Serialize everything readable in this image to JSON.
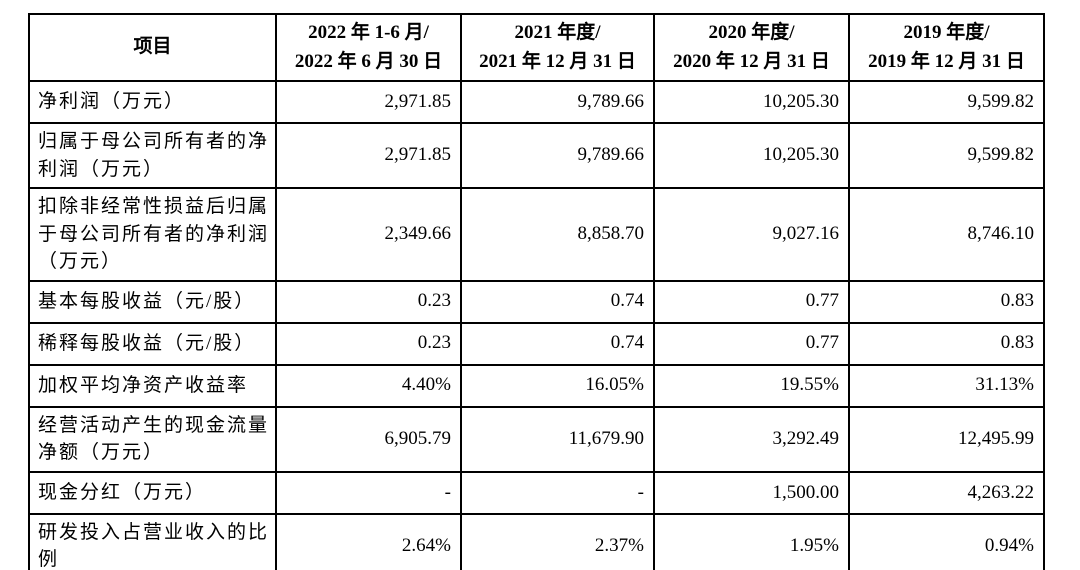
{
  "table": {
    "header": {
      "item_label": "项目",
      "periods": [
        {
          "line1": "2022 年 1-6 月/",
          "line2": "2022 年 6 月 30 日"
        },
        {
          "line1": "2021 年度/",
          "line2": "2021 年 12 月 31 日"
        },
        {
          "line1": "2020 年度/",
          "line2": "2020 年 12 月 31 日"
        },
        {
          "line1": "2019 年度/",
          "line2": "2019 年 12 月 31 日"
        }
      ]
    },
    "rows": [
      {
        "label": "净利润（万元）",
        "values": [
          "2,971.85",
          "9,789.66",
          "10,205.30",
          "9,599.82"
        ],
        "size": "h-1line"
      },
      {
        "label": "归属于母公司所有者的净利润（万元）",
        "values": [
          "2,971.85",
          "9,789.66",
          "10,205.30",
          "9,599.82"
        ],
        "size": "h-2line"
      },
      {
        "label": "扣除非经常性损益后归属于母公司所有者的净利润（万元）",
        "values": [
          "2,349.66",
          "8,858.70",
          "9,027.16",
          "8,746.10"
        ],
        "size": "h-3line"
      },
      {
        "label": "基本每股收益（元/股）",
        "values": [
          "0.23",
          "0.74",
          "0.77",
          "0.83"
        ],
        "size": "h-1line"
      },
      {
        "label": "稀释每股收益（元/股）",
        "values": [
          "0.23",
          "0.74",
          "0.77",
          "0.83"
        ],
        "size": "h-1line"
      },
      {
        "label": "加权平均净资产收益率",
        "values": [
          "4.40%",
          "16.05%",
          "19.55%",
          "31.13%"
        ],
        "size": "h-1line"
      },
      {
        "label": "经营活动产生的现金流量净额（万元）",
        "values": [
          "6,905.79",
          "11,679.90",
          "3,292.49",
          "12,495.99"
        ],
        "size": "h-2line"
      },
      {
        "label": "现金分红（万元）",
        "values": [
          "-",
          "-",
          "1,500.00",
          "4,263.22"
        ],
        "size": "h-1line"
      },
      {
        "label": "研发投入占营业收入的比例",
        "values": [
          "2.64%",
          "2.37%",
          "1.95%",
          "0.94%"
        ],
        "size": "h-2line-tall"
      }
    ]
  },
  "colors": {
    "border": "#000000",
    "background": "#ffffff",
    "text": "#000000"
  }
}
